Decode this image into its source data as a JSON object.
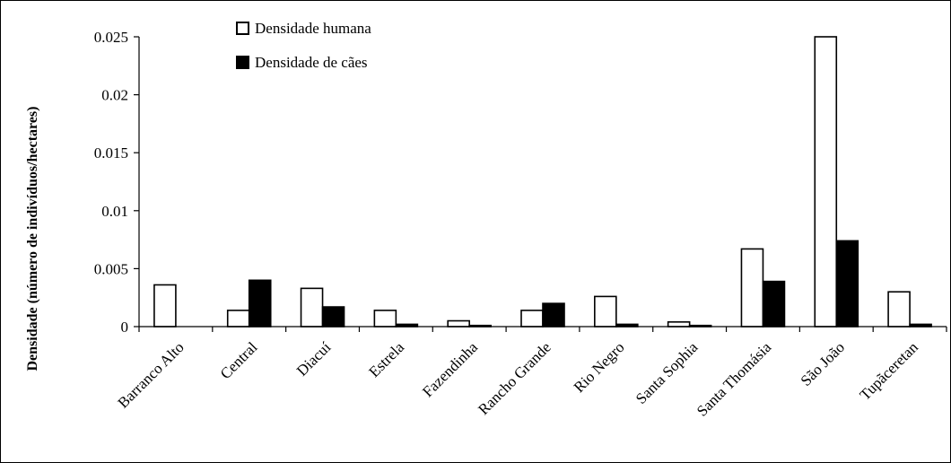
{
  "chart_data": {
    "type": "bar",
    "title": "",
    "xlabel": "",
    "ylabel": "Densidade (número de indivíduos/hectares)",
    "ylim": [
      0,
      0.025
    ],
    "yticks": [
      "0",
      "0.005",
      "0.01",
      "0.015",
      "0.02",
      "0.025"
    ],
    "grid": false,
    "legend_position": "top-left",
    "categories": [
      "Barranco Alto",
      "Central",
      "Diacuí",
      "Estrela",
      "Fazendinha",
      "Rancho Grande",
      "Rio Negro",
      "Santa Sophia",
      "Santa Thomásia",
      "São João",
      "Tupãceretan"
    ],
    "series": [
      {
        "name": "Densidade humana",
        "color": "#ffffff",
        "values": [
          0.0036,
          0.0014,
          0.0033,
          0.0014,
          0.0005,
          0.0014,
          0.0026,
          0.0004,
          0.0067,
          0.025,
          0.003
        ]
      },
      {
        "name": "Densidade de cães",
        "color": "#000000",
        "values": [
          0,
          0.004,
          0.0017,
          0.0002,
          0.0001,
          0.002,
          0.0002,
          0.0001,
          0.0039,
          0.0074,
          0.0002
        ]
      }
    ]
  }
}
